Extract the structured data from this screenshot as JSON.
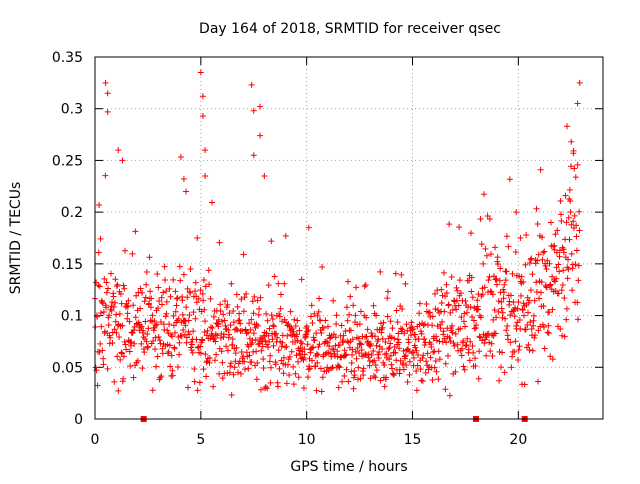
{
  "chart_data": {
    "type": "scatter",
    "title": "Day 164 of 2018, SRMTID for receiver qsec",
    "xlabel": "GPS time / hours",
    "ylabel": "SRMTID / TECUs",
    "xlim": [
      0,
      24
    ],
    "ylim": [
      0,
      0.35
    ],
    "x_ticks": [
      0,
      5,
      10,
      15,
      20
    ],
    "x_tick_labels": [
      "0",
      "5",
      "10",
      "15",
      "20"
    ],
    "y_ticks": [
      0,
      0.05,
      0.1,
      0.15,
      0.2,
      0.25,
      0.3,
      0.35
    ],
    "y_tick_labels": [
      "0",
      "0.05",
      "0.1",
      "0.15",
      "0.2",
      "0.25",
      "0.3",
      "0.35"
    ],
    "grid": true,
    "marker": "+",
    "color": "#ff0000",
    "series": [
      {
        "name": "SRMTID",
        "baseline_profile": [
          [
            0,
            0.09
          ],
          [
            1,
            0.095
          ],
          [
            2,
            0.09
          ],
          [
            3,
            0.085
          ],
          [
            4,
            0.09
          ],
          [
            5,
            0.09
          ],
          [
            6,
            0.08
          ],
          [
            7,
            0.08
          ],
          [
            8,
            0.075
          ],
          [
            9,
            0.07
          ],
          [
            10,
            0.07
          ],
          [
            11,
            0.065
          ],
          [
            12,
            0.062
          ],
          [
            13,
            0.065
          ],
          [
            14,
            0.07
          ],
          [
            15,
            0.07
          ],
          [
            16,
            0.075
          ],
          [
            17,
            0.09
          ],
          [
            18,
            0.1
          ],
          [
            19,
            0.105
          ],
          [
            20,
            0.105
          ],
          [
            21,
            0.12
          ],
          [
            22,
            0.15
          ],
          [
            22.9,
            0.18
          ]
        ],
        "x": [
          0.5,
          0.6,
          0.6,
          1.1,
          1.3,
          4.2,
          4.3,
          5.0,
          5.1,
          5.1,
          5.2,
          5.2,
          7.4,
          7.5,
          7.5,
          7.8,
          7.8,
          8.0,
          10.1,
          19.9,
          20.1,
          22.3,
          22.5,
          22.6,
          22.8,
          22.9
        ],
        "y": [
          0.325,
          0.315,
          0.297,
          0.26,
          0.25,
          0.232,
          0.22,
          0.335,
          0.312,
          0.293,
          0.26,
          0.235,
          0.323,
          0.298,
          0.255,
          0.302,
          0.274,
          0.235,
          0.185,
          0.2,
          0.175,
          0.283,
          0.268,
          0.257,
          0.305,
          0.325
        ]
      }
    ],
    "markers_on_axis": [
      {
        "x": 2.3,
        "y": 0
      },
      {
        "x": 18.0,
        "y": 0
      },
      {
        "x": 20.3,
        "y": 0
      }
    ]
  }
}
